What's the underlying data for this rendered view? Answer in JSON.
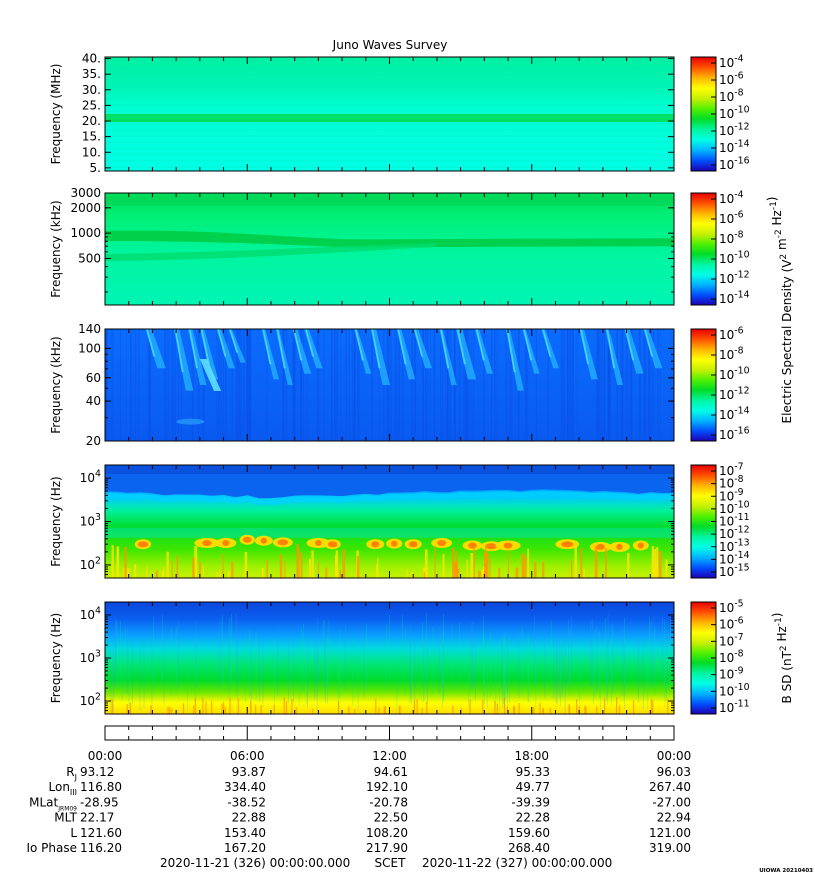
{
  "title": "Juno Waves Survey",
  "palette": [
    "#1e00b4",
    "#0050ff",
    "#00b4ff",
    "#00ffe6",
    "#00f5a0",
    "#00dc28",
    "#50f000",
    "#c8f000",
    "#ffff00",
    "#ffb400",
    "#ff5000",
    "#e60000"
  ],
  "colorbars": [
    {
      "labels": [
        "10^-4",
        "10^-6",
        "10^-8",
        "10^-10",
        "10^-12",
        "10^-14",
        "10^-16"
      ]
    },
    {
      "labels": [
        "10^-4",
        "10^-6",
        "10^-8",
        "10^-10",
        "10^-12",
        "10^-14"
      ]
    },
    {
      "labels": [
        "10^-6",
        "10^-8",
        "10^-10",
        "10^-12",
        "10^-14",
        "10^-16"
      ]
    },
    {
      "labels": [
        "10^-7",
        "10^-8",
        "10^-9",
        "10^-10",
        "10^-11",
        "10^-12",
        "10^-13",
        "10^-14",
        "10^-15"
      ]
    },
    {
      "labels": [
        "10^-5",
        "10^-6",
        "10^-7",
        "10^-8",
        "10^-9",
        "10^-10",
        "10^-11"
      ]
    }
  ],
  "side_labels": {
    "electric": "Electric Spectral Density (V^2 m^-2 Hz^-1)",
    "magnetic": "B SD (nT^2 Hz^-1)"
  },
  "chart_data": [
    {
      "type": "heatmap",
      "ylabel": "Frequency (MHz)",
      "yscale": "linear",
      "ylim": [
        4,
        40.5
      ],
      "ticks": [
        {
          "v": 40,
          "l": "40."
        },
        {
          "v": 35,
          "l": "35."
        },
        {
          "v": 30,
          "l": "30."
        },
        {
          "v": 25,
          "l": "25."
        },
        {
          "v": 20,
          "l": "20."
        },
        {
          "v": 15,
          "l": "15."
        },
        {
          "v": 10,
          "l": "10."
        },
        {
          "v": 5,
          "l": "5."
        }
      ]
    },
    {
      "type": "heatmap",
      "ylabel": "Frequency (kHz)",
      "yscale": "log",
      "ylim": [
        140,
        3000
      ],
      "ticks": [
        {
          "v": 3000,
          "l": "3000"
        },
        {
          "v": 2000,
          "l": "2000"
        },
        {
          "v": 1000,
          "l": "1000"
        },
        {
          "v": 500,
          "l": "500"
        }
      ]
    },
    {
      "type": "heatmap",
      "ylabel": "Frequency (kHz)",
      "yscale": "log",
      "ylim": [
        20,
        140
      ],
      "ticks": [
        {
          "v": 140,
          "l": "140"
        },
        {
          "v": 100,
          "l": "100"
        },
        {
          "v": 60,
          "l": "60"
        },
        {
          "v": 40,
          "l": "40"
        },
        {
          "v": 20,
          "l": "20"
        }
      ]
    },
    {
      "type": "heatmap",
      "ylabel": "Frequency (Hz)",
      "yscale": "log",
      "ylim": [
        50,
        20000
      ],
      "ticks": [
        {
          "v": 10000,
          "l": "10^4"
        },
        {
          "v": 1000,
          "l": "10^3"
        },
        {
          "v": 100,
          "l": "10^2"
        }
      ]
    },
    {
      "type": "heatmap",
      "ylabel": "Frequency (Hz)",
      "yscale": "log",
      "ylim": [
        50,
        20000
      ],
      "ticks": [
        {
          "v": 10000,
          "l": "10^4"
        },
        {
          "v": 1000,
          "l": "10^3"
        },
        {
          "v": 100,
          "l": "10^2"
        }
      ]
    }
  ],
  "time_axis": {
    "xlim_hours": [
      0,
      24
    ],
    "labels": [
      {
        "h": 0,
        "t": "00:00"
      },
      {
        "h": 6,
        "t": "06:00"
      },
      {
        "h": 12,
        "t": "12:00"
      },
      {
        "h": 18,
        "t": "18:00"
      },
      {
        "h": 24,
        "t": "00:00"
      }
    ]
  },
  "ephemeris": [
    {
      "name": "R",
      "sub": "J",
      "values": [
        "93.12",
        "93.87",
        "94.61",
        "95.33",
        "96.03"
      ]
    },
    {
      "name": "Lon",
      "sub": "III",
      "values": [
        "116.80",
        "334.40",
        "192.10",
        "49.77",
        "267.40"
      ]
    },
    {
      "name": "MLat",
      "sub": "JRM09",
      "values": [
        "-28.95",
        "-38.52",
        "-20.78",
        "-39.39",
        "-27.00"
      ]
    },
    {
      "name": "MLT",
      "sub": "",
      "values": [
        "22.17",
        "22.88",
        "22.50",
        "22.28",
        "22.94"
      ]
    },
    {
      "name": "L",
      "sub": "",
      "values": [
        "121.60",
        "153.40",
        "108.20",
        "159.60",
        "121.00"
      ]
    },
    {
      "name": "Io Phase",
      "sub": "",
      "values": [
        "116.20",
        "167.20",
        "217.90",
        "268.40",
        "319.00"
      ]
    }
  ],
  "footer": {
    "start": "2020-11-21 (326) 00:00:00.000",
    "scet": "SCET",
    "end": "2020-11-22 (327) 00:00:00.000",
    "credit": "UIOWA 20210403"
  }
}
